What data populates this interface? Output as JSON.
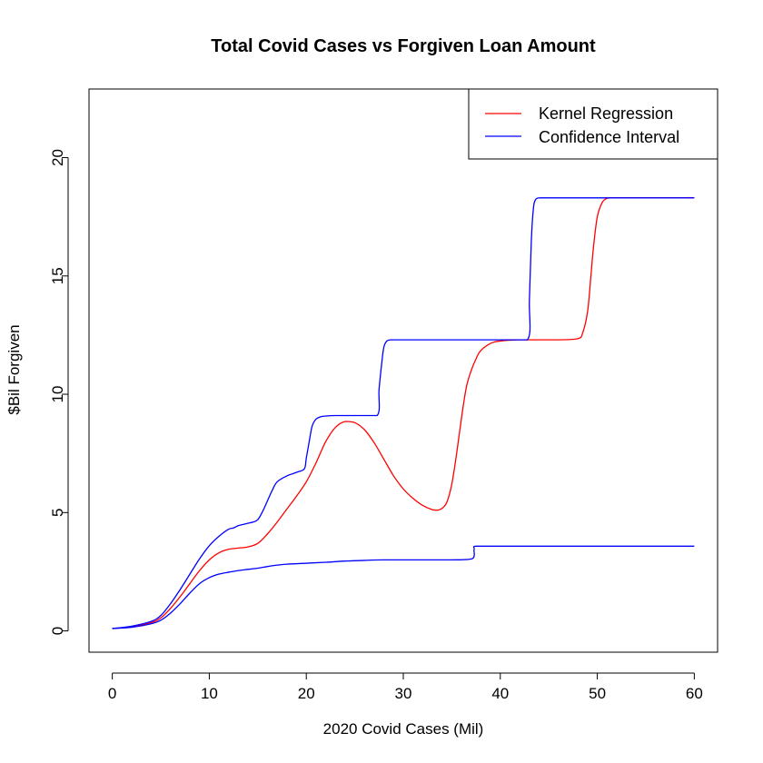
{
  "chart_data": {
    "type": "line",
    "title": "Total Covid Cases vs Forgiven Loan Amount",
    "xlabel": "2020 Covid Cases (Mil)",
    "ylabel": "$Bil Forgiven",
    "xlim": [
      -2.4,
      62.4
    ],
    "ylim": [
      -0.9,
      22.9
    ],
    "xticks": [
      0,
      10,
      20,
      30,
      40,
      50,
      60
    ],
    "yticks": [
      0,
      5,
      10,
      15,
      20
    ],
    "grid": false,
    "legend_position": "top-right",
    "legend": [
      {
        "label": "Kernel Regression",
        "color": "#ff0000"
      },
      {
        "label": "Confidence Interval",
        "color": "#0000ff"
      }
    ],
    "series": [
      {
        "name": "Kernel Regression",
        "color": "#ff0000",
        "x": [
          0,
          2,
          4,
          5,
          6,
          7,
          8,
          9,
          10,
          11,
          12,
          13,
          14,
          15,
          16,
          17,
          18,
          19,
          20,
          21,
          22,
          23,
          24,
          25,
          26,
          27,
          28,
          29,
          30,
          31,
          32,
          33,
          33.5,
          34,
          34.5,
          35,
          35.5,
          36,
          36.5,
          37,
          37.5,
          38,
          39,
          40,
          42,
          44,
          46,
          48,
          48.5,
          49,
          49.3,
          49.6,
          50,
          50.5,
          51,
          51.5,
          52,
          55,
          60
        ],
        "y": [
          0.1,
          0.18,
          0.35,
          0.55,
          0.95,
          1.45,
          2.0,
          2.55,
          3.0,
          3.3,
          3.45,
          3.5,
          3.55,
          3.7,
          4.1,
          4.6,
          5.15,
          5.7,
          6.3,
          7.1,
          8.0,
          8.6,
          8.85,
          8.8,
          8.5,
          7.95,
          7.25,
          6.55,
          6.0,
          5.6,
          5.3,
          5.12,
          5.1,
          5.18,
          5.45,
          6.2,
          7.5,
          9.0,
          10.3,
          11.0,
          11.5,
          11.85,
          12.15,
          12.25,
          12.3,
          12.3,
          12.3,
          12.35,
          12.6,
          13.5,
          14.8,
          16.2,
          17.5,
          18.1,
          18.28,
          18.3,
          18.3,
          18.3,
          18.3
        ]
      },
      {
        "name": "Confidence Interval",
        "color": "#0000ff",
        "x": [
          0,
          2,
          4,
          5,
          6,
          7,
          8,
          9,
          10,
          11,
          12,
          12.5,
          13,
          13.5,
          14,
          14.5,
          15,
          15.5,
          16,
          16.5,
          17,
          18,
          19,
          19.8,
          20,
          20.3,
          20.6,
          21,
          21.5,
          22,
          23,
          25,
          27.3,
          27.5,
          27.8,
          28,
          28.3,
          28.7,
          29,
          30,
          35,
          40,
          42.8,
          43,
          43.2,
          43.4,
          43.6,
          44,
          45,
          50,
          55,
          60
        ],
        "y": [
          0.1,
          0.2,
          0.4,
          0.65,
          1.15,
          1.75,
          2.4,
          3.05,
          3.6,
          4.0,
          4.3,
          4.35,
          4.45,
          4.5,
          4.55,
          4.6,
          4.7,
          5.05,
          5.5,
          5.95,
          6.3,
          6.55,
          6.7,
          6.85,
          7.3,
          8.0,
          8.65,
          8.95,
          9.05,
          9.08,
          9.1,
          9.1,
          9.1,
          10.2,
          11.4,
          12.0,
          12.25,
          12.3,
          12.3,
          12.3,
          12.3,
          12.3,
          12.3,
          14.0,
          16.5,
          17.8,
          18.2,
          18.3,
          18.3,
          18.3,
          18.3,
          18.3
        ]
      },
      {
        "name": "Confidence Interval",
        "color": "#0000ff",
        "x": [
          0,
          2,
          4,
          5,
          6,
          7,
          8,
          9,
          10,
          11,
          12,
          13,
          14,
          15,
          16,
          17,
          18,
          20,
          22,
          24,
          26,
          28,
          30,
          35,
          37.1,
          37.3,
          37.5,
          40,
          45,
          50,
          55,
          60
        ],
        "y": [
          0.1,
          0.15,
          0.3,
          0.45,
          0.75,
          1.15,
          1.6,
          2.0,
          2.25,
          2.4,
          2.48,
          2.55,
          2.6,
          2.65,
          2.72,
          2.78,
          2.82,
          2.86,
          2.9,
          2.95,
          2.98,
          3.0,
          3.0,
          3.0,
          3.05,
          3.45,
          3.58,
          3.58,
          3.58,
          3.58,
          3.58,
          3.58
        ]
      }
    ]
  }
}
